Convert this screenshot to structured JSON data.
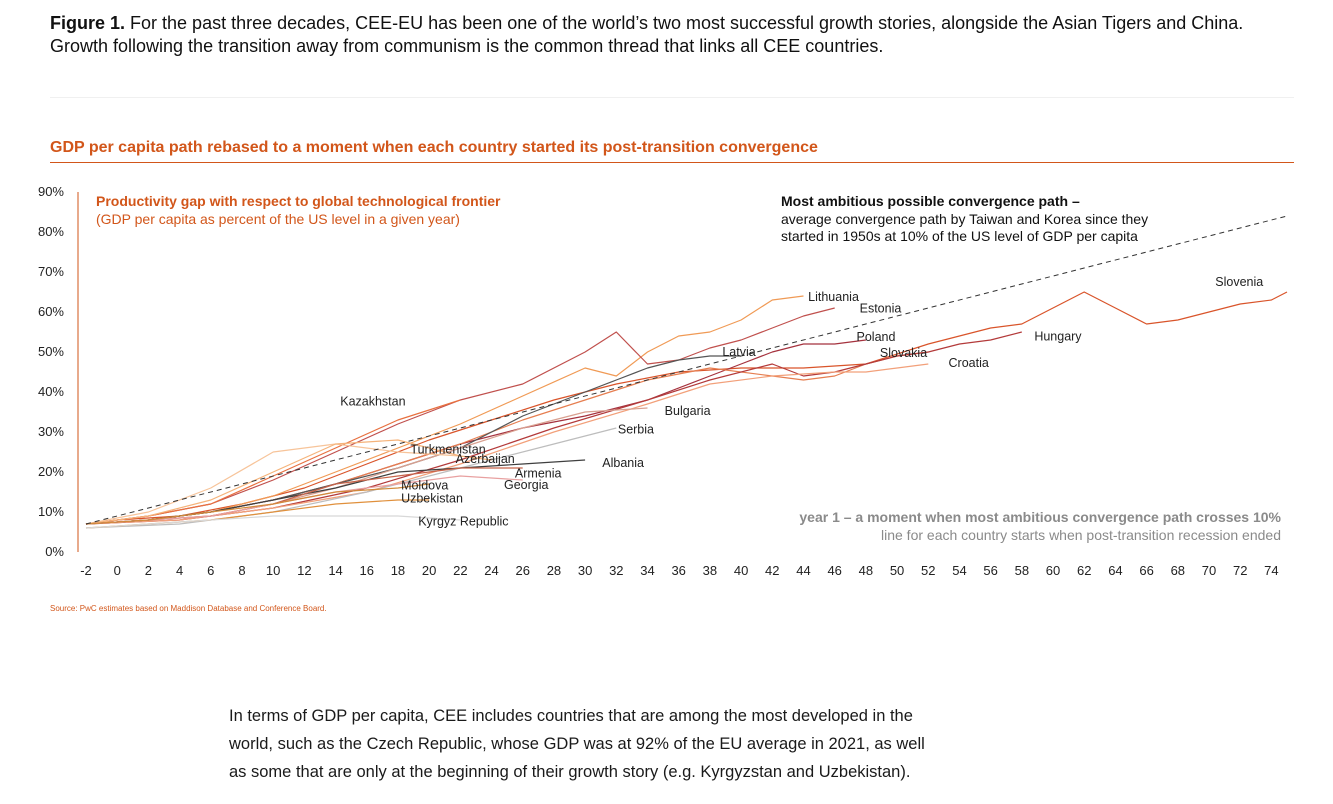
{
  "caption": {
    "label": "Figure 1.",
    "text": "For the past three decades, CEE-EU has been one of the world’s two most successful growth stories, alongside the Asian Tigers and China. Growth following the transition away from communism is the common thread that links all CEE countries."
  },
  "colors": {
    "accent": "#d2561a",
    "grey_note": "#8a8a8a",
    "dashed": "#333333"
  },
  "chart_data": {
    "type": "line",
    "title": "GDP per capita path rebased to a moment when each country started its post-transition convergence",
    "ylabel_title": "Productivity gap with respect to global technological frontier",
    "ylabel_sub": "(GDP per capita as percent of the US level in a given year)",
    "xlim": [
      -2,
      75
    ],
    "ylim": [
      0,
      0.9
    ],
    "x_ticks": [
      -2,
      0,
      2,
      4,
      6,
      8,
      10,
      12,
      14,
      16,
      18,
      20,
      22,
      24,
      26,
      28,
      30,
      32,
      34,
      36,
      38,
      40,
      42,
      44,
      46,
      48,
      50,
      52,
      54,
      56,
      58,
      60,
      62,
      64,
      66,
      68,
      70,
      72,
      74
    ],
    "y_ticks": [
      0,
      0.1,
      0.2,
      0.3,
      0.4,
      0.5,
      0.6,
      0.7,
      0.8,
      0.9
    ],
    "y_tick_labels": [
      "0%",
      "10%",
      "20%",
      "30%",
      "40%",
      "50%",
      "60%",
      "70%",
      "80%",
      "90%"
    ],
    "grid": false,
    "ambitious_path": {
      "title": "Most ambitious possible convergence path –",
      "note_lines": [
        "average convergence path by Taiwan and Korea since they",
        "started in 1950s at 10% of the US level of GDP per capita"
      ],
      "x": [
        -2,
        75
      ],
      "y": [
        0.07,
        0.84
      ]
    },
    "year1_note": {
      "title": "year 1 – a moment when most ambitious convergence path crosses 10%",
      "sub": "line for each country starts when post-transition recession ended"
    },
    "series": [
      {
        "name": "Slovenia",
        "color": "#d9542a",
        "x": [
          -2,
          0,
          4,
          8,
          12,
          16,
          20,
          24,
          28,
          32,
          36,
          40,
          44,
          48,
          52,
          56,
          58,
          60,
          62,
          64,
          66,
          68,
          70,
          72,
          74,
          75
        ],
        "y": [
          0.07,
          0.08,
          0.09,
          0.12,
          0.16,
          0.22,
          0.28,
          0.33,
          0.38,
          0.42,
          0.45,
          0.46,
          0.46,
          0.47,
          0.52,
          0.56,
          0.57,
          0.61,
          0.65,
          0.61,
          0.57,
          0.58,
          0.6,
          0.62,
          0.63,
          0.65
        ]
      },
      {
        "name": "Lithuania",
        "color": "#f09a55",
        "x": [
          -2,
          2,
          6,
          10,
          14,
          18,
          22,
          26,
          30,
          32,
          34,
          36,
          38,
          40,
          42,
          44
        ],
        "y": [
          0.07,
          0.08,
          0.1,
          0.14,
          0.2,
          0.26,
          0.32,
          0.39,
          0.46,
          0.44,
          0.5,
          0.54,
          0.55,
          0.58,
          0.63,
          0.64
        ]
      },
      {
        "name": "Estonia",
        "color": "#c0504d",
        "x": [
          -2,
          2,
          6,
          10,
          14,
          18,
          22,
          26,
          30,
          32,
          34,
          36,
          38,
          40,
          42,
          44,
          46
        ],
        "y": [
          0.07,
          0.09,
          0.12,
          0.18,
          0.25,
          0.32,
          0.38,
          0.42,
          0.5,
          0.55,
          0.47,
          0.48,
          0.51,
          0.53,
          0.56,
          0.59,
          0.61
        ]
      },
      {
        "name": "Poland",
        "color": "#a5323e",
        "x": [
          -2,
          2,
          6,
          10,
          14,
          18,
          22,
          26,
          30,
          34,
          38,
          40,
          42,
          44,
          46,
          48
        ],
        "y": [
          0.07,
          0.08,
          0.1,
          0.13,
          0.17,
          0.22,
          0.27,
          0.31,
          0.34,
          0.38,
          0.44,
          0.47,
          0.5,
          0.52,
          0.52,
          0.53
        ]
      },
      {
        "name": "Slovakia",
        "color": "#e67e50",
        "x": [
          -2,
          2,
          6,
          10,
          14,
          18,
          22,
          26,
          30,
          34,
          38,
          42,
          44,
          46,
          48,
          50,
          52
        ],
        "y": [
          0.07,
          0.08,
          0.1,
          0.13,
          0.17,
          0.22,
          0.27,
          0.33,
          0.38,
          0.43,
          0.46,
          0.44,
          0.43,
          0.44,
          0.47,
          0.49,
          0.5
        ]
      },
      {
        "name": "Hungary",
        "color": "#b33a3a",
        "x": [
          -2,
          4,
          10,
          16,
          22,
          28,
          34,
          38,
          42,
          44,
          46,
          48,
          50,
          52,
          54,
          56,
          58
        ],
        "y": [
          0.07,
          0.08,
          0.11,
          0.16,
          0.23,
          0.31,
          0.38,
          0.43,
          0.47,
          0.44,
          0.45,
          0.47,
          0.49,
          0.5,
          0.52,
          0.53,
          0.55
        ]
      },
      {
        "name": "Croatia",
        "color": "#f2a07a",
        "x": [
          -2,
          4,
          10,
          16,
          22,
          28,
          34,
          38,
          42,
          46,
          48,
          50,
          52
        ],
        "y": [
          0.07,
          0.08,
          0.11,
          0.15,
          0.22,
          0.3,
          0.37,
          0.42,
          0.44,
          0.45,
          0.45,
          0.46,
          0.47
        ]
      },
      {
        "name": "Latvia",
        "color": "#555555",
        "x": [
          -2,
          2,
          6,
          10,
          14,
          18,
          22,
          26,
          30,
          32,
          34,
          36,
          38,
          40
        ],
        "y": [
          0.07,
          0.08,
          0.1,
          0.13,
          0.17,
          0.21,
          0.26,
          0.34,
          0.4,
          0.43,
          0.46,
          0.48,
          0.49,
          0.49
        ]
      },
      {
        "name": "Kazakhstan",
        "color": "#e8703f",
        "x": [
          -2,
          2,
          6,
          10,
          14,
          18,
          22
        ],
        "y": [
          0.07,
          0.09,
          0.12,
          0.19,
          0.26,
          0.33,
          0.38
        ]
      },
      {
        "name": "Bulgaria",
        "color": "#d9a090",
        "x": [
          -2,
          2,
          6,
          10,
          14,
          18,
          22,
          26,
          30,
          34
        ],
        "y": [
          0.07,
          0.08,
          0.09,
          0.12,
          0.16,
          0.21,
          0.26,
          0.31,
          0.35,
          0.36
        ]
      },
      {
        "name": "Serbia",
        "color": "#bdbdbd",
        "x": [
          -2,
          4,
          10,
          16,
          22,
          28,
          32
        ],
        "y": [
          0.06,
          0.07,
          0.1,
          0.15,
          0.21,
          0.27,
          0.31
        ]
      },
      {
        "name": "Turkmenistan",
        "color": "#f7c49a",
        "x": [
          -2,
          2,
          6,
          10,
          14,
          18,
          22
        ],
        "y": [
          0.07,
          0.1,
          0.16,
          0.25,
          0.27,
          0.25,
          0.24
        ]
      },
      {
        "name": "Azerbaijan",
        "color": "#f5b37a",
        "x": [
          -2,
          2,
          6,
          10,
          14,
          18,
          22,
          24
        ],
        "y": [
          0.07,
          0.09,
          0.13,
          0.2,
          0.27,
          0.28,
          0.24,
          0.23
        ]
      },
      {
        "name": "Albania",
        "color": "#3f3f3f",
        "x": [
          -2,
          2,
          6,
          10,
          14,
          18,
          22,
          26,
          30
        ],
        "y": [
          0.07,
          0.08,
          0.1,
          0.13,
          0.16,
          0.2,
          0.21,
          0.22,
          0.23
        ]
      },
      {
        "name": "Armenia",
        "color": "#c8644a",
        "x": [
          -2,
          2,
          6,
          10,
          14,
          18,
          22,
          26
        ],
        "y": [
          0.07,
          0.08,
          0.09,
          0.12,
          0.17,
          0.19,
          0.21,
          0.21
        ]
      },
      {
        "name": "Georgia",
        "color": "#e8a0a0",
        "x": [
          -2,
          2,
          6,
          10,
          14,
          18,
          22,
          26
        ],
        "y": [
          0.07,
          0.08,
          0.09,
          0.12,
          0.15,
          0.17,
          0.19,
          0.18
        ]
      },
      {
        "name": "Moldova",
        "color": "#d28a3a",
        "x": [
          -2,
          2,
          6,
          10,
          14,
          18,
          20
        ],
        "y": [
          0.07,
          0.08,
          0.1,
          0.12,
          0.15,
          0.16,
          0.17
        ]
      },
      {
        "name": "Uzbekistan",
        "color": "#e0903c",
        "x": [
          -2,
          2,
          6,
          10,
          14,
          18,
          20
        ],
        "y": [
          0.06,
          0.07,
          0.08,
          0.1,
          0.12,
          0.13,
          0.13
        ]
      },
      {
        "name": "Kyrgyz Republic",
        "color": "#d8d8d8",
        "x": [
          -2,
          2,
          6,
          10,
          14,
          18,
          22
        ],
        "y": [
          0.06,
          0.07,
          0.08,
          0.09,
          0.09,
          0.09,
          0.08
        ]
      }
    ],
    "labels": [
      {
        "text": "Slovenia",
        "x": 70.4,
        "y": 0.675
      },
      {
        "text": "Lithuania",
        "x": 44.3,
        "y": 0.637
      },
      {
        "text": "Estonia",
        "x": 47.6,
        "y": 0.609
      },
      {
        "text": "Poland",
        "x": 47.4,
        "y": 0.537
      },
      {
        "text": "Slovakia",
        "x": 48.9,
        "y": 0.497
      },
      {
        "text": "Hungary",
        "x": 58.8,
        "y": 0.539
      },
      {
        "text": "Croatia",
        "x": 53.3,
        "y": 0.473
      },
      {
        "text": "Latvia",
        "x": 38.8,
        "y": 0.5
      },
      {
        "text": "Kazakhstan",
        "x": 14.3,
        "y": 0.376
      },
      {
        "text": "Bulgaria",
        "x": 35.1,
        "y": 0.352
      },
      {
        "text": "Serbia",
        "x": 32.1,
        "y": 0.306
      },
      {
        "text": "Turkmenistan",
        "x": 18.8,
        "y": 0.256
      },
      {
        "text": "Azerbaijan",
        "x": 21.7,
        "y": 0.233
      },
      {
        "text": "Albania",
        "x": 31.1,
        "y": 0.223
      },
      {
        "text": "Armenia",
        "x": 25.5,
        "y": 0.196
      },
      {
        "text": "Georgia",
        "x": 24.8,
        "y": 0.168
      },
      {
        "text": "Moldova",
        "x": 18.2,
        "y": 0.166
      },
      {
        "text": "Uzbekistan",
        "x": 18.2,
        "y": 0.134
      },
      {
        "text": "Kyrgyz Republic",
        "x": 19.3,
        "y": 0.076
      }
    ]
  },
  "source": "Source: PwC estimates based on Maddison Database and Conference Board.",
  "body_lines": [
    "In terms of GDP per capita, CEE includes countries that are among the most developed in the",
    "world, such as the Czech Republic, whose GDP was at 92% of the EU average in 2021, as well",
    "as some that are only at the beginning of their growth story (e.g. Kyrgyzstan and Uzbekistan)."
  ]
}
